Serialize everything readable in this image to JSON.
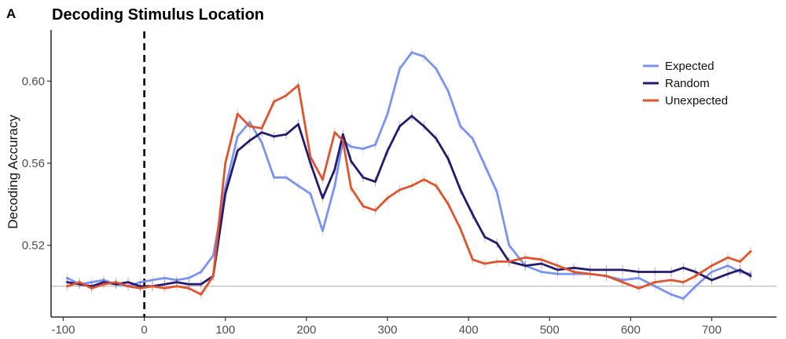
{
  "panel_label": "A",
  "chart_data": {
    "type": "line",
    "title": "Decoding Stimulus Location",
    "xlabel": "",
    "ylabel": "Decoding Accuracy",
    "xlim": [
      -115,
      780
    ],
    "ylim": [
      0.485,
      0.625
    ],
    "x_ticks": [
      -100,
      0,
      100,
      200,
      300,
      400,
      500,
      600,
      700
    ],
    "y_ticks": [
      0.52,
      0.56,
      0.6
    ],
    "y_tick_labels": [
      "0.52",
      "0.56",
      "0.60"
    ],
    "chance_level": 0.5,
    "stimulus_onset": 0,
    "grid": false,
    "legend_position": "top-right",
    "x": [
      -95,
      -80,
      -65,
      -50,
      -35,
      -20,
      -5,
      10,
      25,
      40,
      55,
      70,
      85,
      100,
      115,
      130,
      145,
      160,
      175,
      190,
      205,
      220,
      235,
      245,
      255,
      270,
      285,
      300,
      315,
      330,
      345,
      360,
      375,
      390,
      405,
      420,
      435,
      450,
      470,
      490,
      510,
      530,
      550,
      570,
      590,
      610,
      630,
      650,
      665,
      680,
      700,
      720,
      735,
      748
    ],
    "series": [
      {
        "name": "Expected",
        "color": "#7b93f0",
        "values": [
          0.504,
          0.501,
          0.502,
          0.503,
          0.501,
          0.5,
          0.502,
          0.503,
          0.504,
          0.503,
          0.504,
          0.507,
          0.515,
          0.548,
          0.573,
          0.58,
          0.57,
          0.553,
          0.553,
          0.549,
          0.545,
          0.527,
          0.549,
          0.571,
          0.568,
          0.567,
          0.569,
          0.584,
          0.606,
          0.614,
          0.612,
          0.606,
          0.595,
          0.578,
          0.572,
          0.559,
          0.546,
          0.52,
          0.51,
          0.507,
          0.506,
          0.506,
          0.506,
          0.505,
          0.503,
          0.504,
          0.5,
          0.496,
          0.494,
          0.5,
          0.507,
          0.51,
          0.507,
          0.506
        ]
      },
      {
        "name": "Random",
        "color": "#241a6e",
        "values": [
          0.502,
          0.501,
          0.5,
          0.502,
          0.501,
          0.502,
          0.5,
          0.5,
          0.501,
          0.502,
          0.501,
          0.501,
          0.505,
          0.545,
          0.566,
          0.571,
          0.575,
          0.573,
          0.574,
          0.579,
          0.56,
          0.543,
          0.557,
          0.574,
          0.561,
          0.553,
          0.551,
          0.566,
          0.578,
          0.583,
          0.578,
          0.572,
          0.562,
          0.547,
          0.535,
          0.524,
          0.521,
          0.512,
          0.51,
          0.511,
          0.508,
          0.509,
          0.508,
          0.508,
          0.508,
          0.507,
          0.507,
          0.507,
          0.509,
          0.507,
          0.503,
          0.506,
          0.508,
          0.505
        ]
      },
      {
        "name": "Unexpected",
        "color": "#e0532d",
        "values": [
          0.5,
          0.502,
          0.499,
          0.501,
          0.502,
          0.5,
          0.499,
          0.5,
          0.499,
          0.5,
          0.499,
          0.496,
          0.505,
          0.56,
          0.584,
          0.578,
          0.577,
          0.59,
          0.593,
          0.598,
          0.563,
          0.552,
          0.575,
          0.571,
          0.548,
          0.539,
          0.537,
          0.543,
          0.547,
          0.549,
          0.552,
          0.549,
          0.54,
          0.528,
          0.513,
          0.511,
          0.512,
          0.512,
          0.514,
          0.513,
          0.51,
          0.507,
          0.506,
          0.505,
          0.502,
          0.499,
          0.502,
          0.503,
          0.502,
          0.505,
          0.51,
          0.514,
          0.512,
          0.517
        ]
      }
    ]
  }
}
